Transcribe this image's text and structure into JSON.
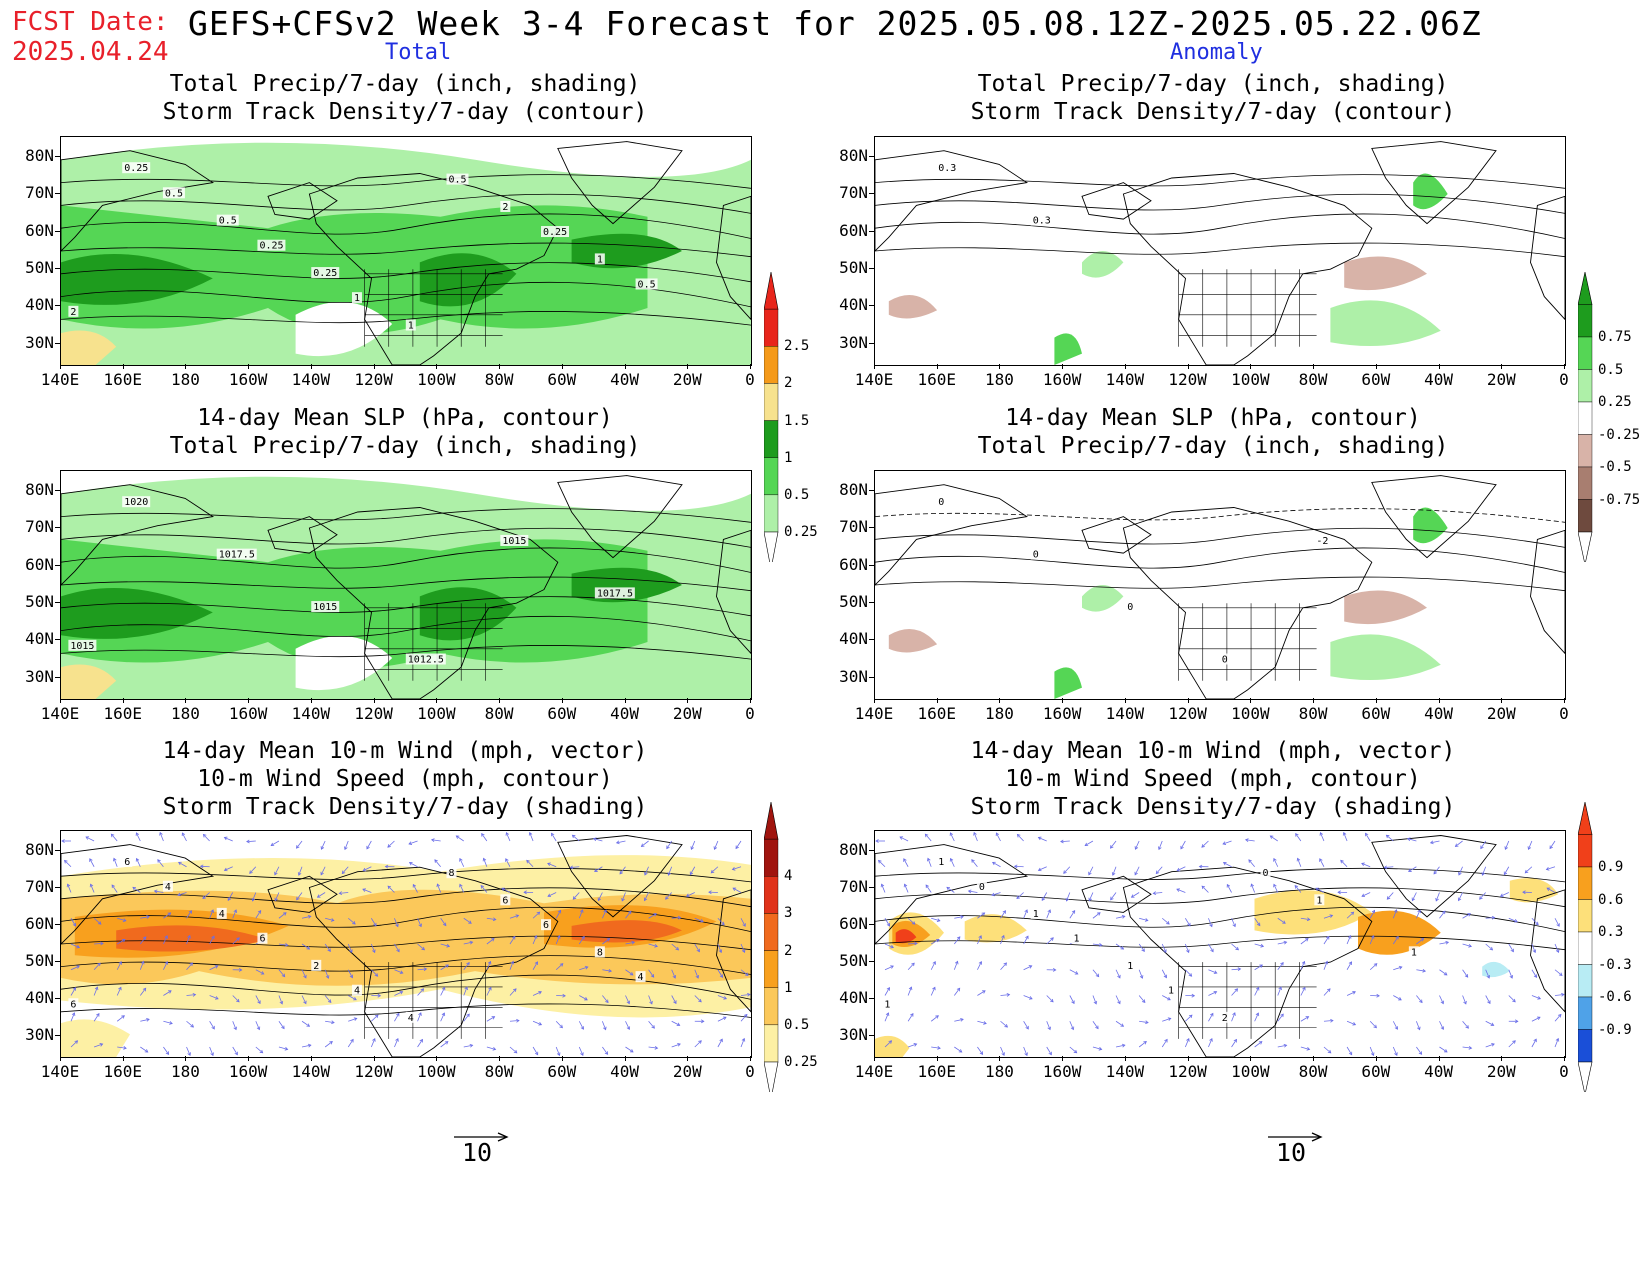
{
  "header": {
    "fcst_label": "FCST Date:",
    "fcst_date": "2025.04.24",
    "title": "GEFS+CFSv2 Week 3-4 Forecast for 2025.05.08.12Z-2025.05.22.06Z",
    "col_total": "Total",
    "col_anomaly": "Anomaly"
  },
  "axes": {
    "lat_labels": [
      "80N",
      "70N",
      "60N",
      "50N",
      "40N",
      "30N"
    ],
    "lon_labels": [
      "140E",
      "160E",
      "180",
      "160W",
      "140W",
      "120W",
      "100W",
      "80W",
      "60W",
      "40W",
      "20W",
      "0"
    ]
  },
  "panels": [
    {
      "id": "p1",
      "title_lines": [
        "Total Precip/7-day (inch, shading)",
        "Storm Track Density/7-day (contour)"
      ],
      "contour_labels": [
        "0.25",
        "0.5",
        "0.25",
        "1",
        "2",
        "1",
        "2",
        "0.5",
        "0.25",
        "1",
        "0.5",
        "0.25",
        "0.5"
      ]
    },
    {
      "id": "p2",
      "title_lines": [
        "Total Precip/7-day (inch, shading)",
        "Storm Track Density/7-day (contour)"
      ],
      "contour_labels": [
        "0.3",
        "0.3"
      ]
    },
    {
      "id": "p3",
      "title_lines": [
        "14-day Mean SLP (hPa, contour)",
        "Total Precip/7-day (inch, shading)"
      ],
      "contour_labels": [
        "1020",
        "1017.5",
        "1015",
        "1012.5",
        "1015",
        "1017.5",
        "1015"
      ]
    },
    {
      "id": "p4",
      "title_lines": [
        "14-day Mean SLP (hPa, contour)",
        "Total Precip/7-day (inch, shading)"
      ],
      "contour_labels": [
        "0",
        "0",
        "0",
        "0",
        "-2"
      ]
    },
    {
      "id": "p5",
      "title_lines": [
        "14-day Mean 10-m Wind (mph, vector)",
        "10-m Wind Speed (mph, contour)",
        "Storm Track Density/7-day (shading)"
      ],
      "contour_labels": [
        "6",
        "4",
        "2",
        "4",
        "6",
        "8",
        "6",
        "4",
        "6",
        "4",
        "8",
        "6",
        "4"
      ]
    },
    {
      "id": "p6",
      "title_lines": [
        "14-day Mean 10-m Wind (mph, vector)",
        "10-m Wind Speed (mph, contour)",
        "Storm Track Density/7-day (shading)"
      ],
      "contour_labels": [
        "1",
        "1",
        "1",
        "2",
        "1",
        "1",
        "1",
        "0",
        "1",
        "1",
        "0"
      ]
    }
  ],
  "colorbars": {
    "precip_total": {
      "labels": [
        "2.5",
        "2",
        "1.5",
        "1",
        "0.5",
        "0.25"
      ],
      "colors": [
        "#e8251b",
        "#f59a1a",
        "#f7e28e",
        "#1e9c1e",
        "#55d655",
        "#aef0a8"
      ]
    },
    "precip_anom": {
      "labels": [
        "0.75",
        "0.5",
        "0.25",
        "-0.25",
        "-0.5",
        "-0.75"
      ],
      "colors": [
        "#1e9c1e",
        "#55d655",
        "#aef0a8",
        "#ffffff",
        "#d8b3a8",
        "#a87e70",
        "#6e4a3e"
      ]
    },
    "storm_total": {
      "labels": [
        "4",
        "3",
        "2",
        "1",
        "0.5",
        "0.25"
      ],
      "colors": [
        "#a0140e",
        "#e0321a",
        "#f06a1e",
        "#f8a01e",
        "#fbc85a",
        "#fdf0a4"
      ]
    },
    "storm_anom": {
      "labels": [
        "0.9",
        "0.6",
        "0.3",
        "-0.3",
        "-0.6",
        "-0.9"
      ],
      "colors": [
        "#f0401a",
        "#f8a01e",
        "#fde07a",
        "#ffffff",
        "#b8ecf4",
        "#4fa2e8",
        "#1a4fd8"
      ]
    }
  },
  "reference_vector": {
    "value": "10"
  }
}
